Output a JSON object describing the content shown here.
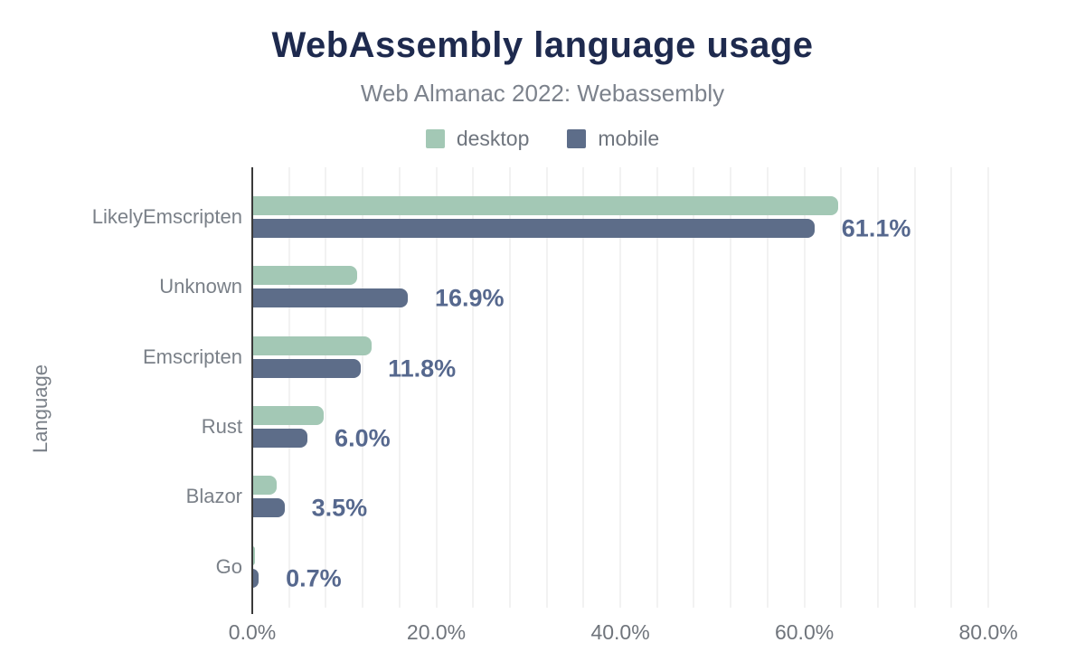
{
  "header": {
    "title": "WebAssembly language usage",
    "subtitle": "Web Almanac 2022: Webassembly"
  },
  "legend": {
    "items": [
      {
        "label": "desktop",
        "color": "#a3c8b5"
      },
      {
        "label": "mobile",
        "color": "#5d6d89"
      }
    ]
  },
  "chart_data": {
    "type": "bar",
    "orientation": "horizontal",
    "title": "WebAssembly language usage",
    "subtitle": "Web Almanac 2022: Webassembly",
    "ylabel": "Language",
    "xlabel": "",
    "categories": [
      "LikelyEmscripten",
      "Unknown",
      "Emscripten",
      "Rust",
      "Blazor",
      "Go"
    ],
    "series": [
      {
        "name": "desktop",
        "color": "#a3c8b5",
        "values": [
          63.7,
          11.4,
          13.0,
          7.8,
          2.7,
          0.3
        ]
      },
      {
        "name": "mobile",
        "color": "#5d6d89",
        "values": [
          61.1,
          16.9,
          11.8,
          6.0,
          3.5,
          0.7
        ]
      }
    ],
    "annotations": {
      "series": "mobile",
      "labels": [
        "61.1%",
        "16.9%",
        "11.8%",
        "6.0%",
        "3.5%",
        "0.7%"
      ],
      "color": "#56688e"
    },
    "x_axis": {
      "tick_labels": [
        "0.0%",
        "20.0%",
        "40.0%",
        "60.0%",
        "80.0%"
      ],
      "tick_values": [
        0,
        20,
        40,
        60,
        80
      ],
      "max": 85,
      "minor_grid_step": 4
    },
    "grid": true,
    "legend_position": "top",
    "colors": {
      "title": "#1e2a4e",
      "subtitle": "#7c828c",
      "axis_line": "#3a3a3a",
      "gridline": "#f2f2f2",
      "tick_text": "#70757c",
      "category_text": "#7a8088"
    }
  }
}
